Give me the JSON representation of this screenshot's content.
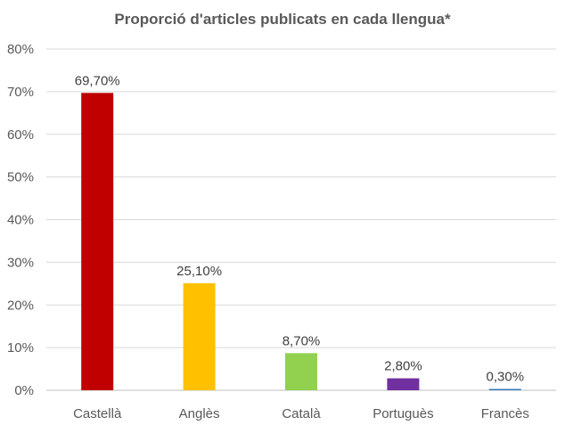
{
  "chart_data": {
    "type": "bar",
    "title": "Proporció d'articles publicats en cada llengua*",
    "xlabel": "",
    "ylabel": "",
    "categories": [
      "Castellà",
      "Anglès",
      "Català",
      "Portuguès",
      "Francès"
    ],
    "values": [
      69.7,
      25.1,
      8.7,
      2.8,
      0.3
    ],
    "data_labels": [
      "69,70%",
      "25,10%",
      "8,70%",
      "2,80%",
      "0,30%"
    ],
    "colors": [
      "#c00000",
      "#ffc000",
      "#92d050",
      "#7030a0",
      "#2e75b6"
    ],
    "ylim": [
      0,
      80
    ],
    "yticks": [
      0,
      10,
      20,
      30,
      40,
      50,
      60,
      70,
      80
    ],
    "ytick_labels": [
      "0%",
      "10%",
      "20%",
      "30%",
      "40%",
      "50%",
      "60%",
      "70%",
      "80%"
    ],
    "grid": true,
    "legend": "none"
  }
}
